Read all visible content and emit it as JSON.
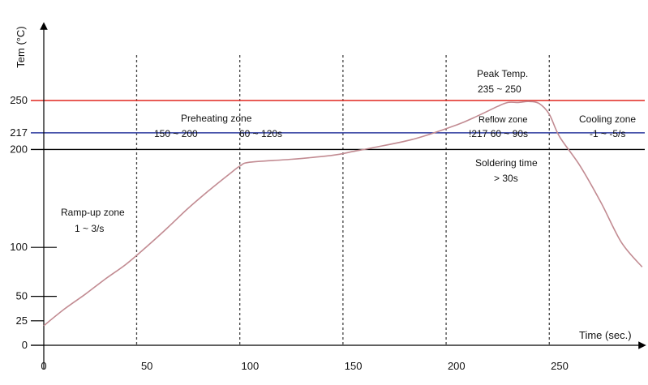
{
  "chart_data": {
    "type": "line",
    "xlabel": "Time (sec.)",
    "ylabel": "Tem (°C)",
    "xlim": [
      0,
      290
    ],
    "ylim": [
      0,
      250
    ],
    "x_ticks": [
      0,
      50,
      100,
      150,
      200,
      250
    ],
    "y_ticks": [
      0,
      25,
      50,
      100,
      200,
      217,
      250
    ],
    "dashed_verticals": [
      45,
      95,
      145,
      195,
      245
    ],
    "reference_lines": [
      {
        "value": 250,
        "color": "#e0271f"
      },
      {
        "value": 217,
        "color": "#2b3a9e"
      },
      {
        "value": 200,
        "color": "#000000"
      }
    ],
    "series": [
      {
        "color": "#c28b92",
        "x": [
          0,
          10,
          20,
          30,
          40,
          50,
          60,
          70,
          80,
          90,
          95,
          100,
          120,
          140,
          150,
          160,
          180,
          200,
          210,
          220,
          225,
          230,
          235,
          240,
          245,
          250,
          260,
          270,
          280,
          290
        ],
        "y": [
          20,
          37,
          52,
          68,
          83,
          101,
          120,
          140,
          158,
          175,
          183,
          187,
          190,
          194,
          198,
          202,
          211,
          225,
          234,
          244,
          248,
          248,
          249,
          247,
          236,
          213,
          183,
          146,
          105,
          80
        ]
      }
    ],
    "annotations": {
      "ramp_up_title": "Ramp-up zone",
      "ramp_up_rate": "1 ~ 3/s",
      "preheat_title": "Preheating zone",
      "preheat_temp": "150 ~ 200",
      "preheat_time": "60 ~ 120s",
      "peak_title": "Peak Temp.",
      "peak_range": "235 ~ 250",
      "reflow_title": "Reflow zone",
      "reflow_detail": "!217 60 ~ 90s",
      "soldering_title": "Soldering time",
      "soldering_value": "> 30s",
      "cooling_title": "Cooling zone",
      "cooling_rate": "-1 ~ -5/s"
    }
  }
}
